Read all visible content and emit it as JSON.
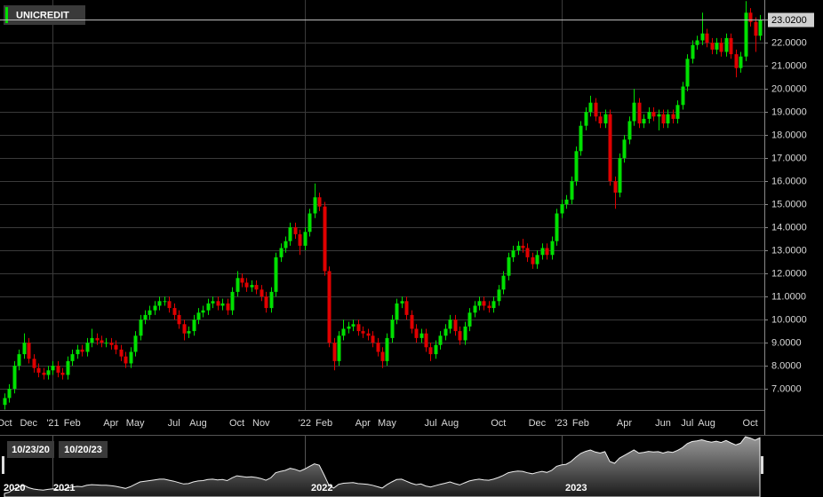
{
  "chart_data": {
    "type": "candlestick",
    "categories": [
      "Oct",
      null,
      null,
      null,
      null,
      "Dec",
      null,
      null,
      null,
      null,
      "'21",
      null,
      null,
      null,
      "Feb",
      null,
      null,
      null,
      null,
      null,
      null,
      null,
      "Apr",
      null,
      null,
      null,
      null,
      "May",
      null,
      null,
      null,
      null,
      null,
      null,
      null,
      "Jul",
      null,
      null,
      null,
      null,
      "Aug",
      null,
      null,
      null,
      null,
      null,
      null,
      null,
      "Oct",
      null,
      null,
      null,
      null,
      "Nov",
      null,
      null,
      null,
      null,
      null,
      null,
      null,
      null,
      "'22",
      null,
      null,
      null,
      "Feb",
      null,
      null,
      null,
      null,
      null,
      null,
      null,
      "Apr",
      null,
      null,
      null,
      null,
      "May",
      null,
      null,
      null,
      null,
      null,
      null,
      null,
      null,
      "Jul",
      null,
      null,
      null,
      "Aug",
      null,
      null,
      null,
      null,
      null,
      null,
      null,
      null,
      null,
      "Oct",
      null,
      null,
      null,
      null,
      null,
      null,
      null,
      "Dec",
      null,
      null,
      null,
      null,
      "'23",
      null,
      null,
      null,
      "Feb",
      null,
      null,
      null,
      null,
      null,
      null,
      null,
      null,
      "Apr",
      null,
      null,
      null,
      null,
      null,
      null,
      null,
      "Jun",
      null,
      null,
      null,
      null,
      "Jul",
      null,
      null,
      null,
      "Aug",
      null,
      null,
      null,
      null,
      null,
      null,
      null,
      null,
      "Oct",
      null,
      null
    ],
    "series": [
      {
        "name": "UNICREDIT",
        "open": [
          6.3,
          6.6,
          7.0,
          8.0,
          8.5,
          9.0,
          8.3,
          7.9,
          7.7,
          7.6,
          7.8,
          8.0,
          7.7,
          7.6,
          8.2,
          8.5,
          8.7,
          8.6,
          9.0,
          9.2,
          9.1,
          9.0,
          9.0,
          8.9,
          8.7,
          8.4,
          8.1,
          8.6,
          9.3,
          10.0,
          10.2,
          10.4,
          10.6,
          10.8,
          10.8,
          10.5,
          10.2,
          9.8,
          9.4,
          9.5,
          10.0,
          10.3,
          10.4,
          10.7,
          10.8,
          10.6,
          10.7,
          10.4,
          11.2,
          11.8,
          11.6,
          11.4,
          11.5,
          11.3,
          11.0,
          10.5,
          11.2,
          12.7,
          13.1,
          13.4,
          14.0,
          13.7,
          13.2,
          13.8,
          14.6,
          15.3,
          14.9,
          12.1,
          9.0,
          8.2,
          9.3,
          9.6,
          9.7,
          9.8,
          9.5,
          9.4,
          9.3,
          9.0,
          8.6,
          8.2,
          9.2,
          10.0,
          10.7,
          10.8,
          10.2,
          9.6,
          9.2,
          9.4,
          8.8,
          8.5,
          8.9,
          9.3,
          9.6,
          10.0,
          9.5,
          9.1,
          9.7,
          10.3,
          10.6,
          10.8,
          10.6,
          10.5,
          10.8,
          11.3,
          11.9,
          12.7,
          13.0,
          13.2,
          13.1,
          12.7,
          12.4,
          12.8,
          13.1,
          12.8,
          13.4,
          14.6,
          15.0,
          15.2,
          16.0,
          17.3,
          18.4,
          19.0,
          19.4,
          18.8,
          18.5,
          18.9,
          16.0,
          15.5,
          17.0,
          17.8,
          18.6,
          19.4,
          18.5,
          18.7,
          19.0,
          18.8,
          18.9,
          18.5,
          18.9,
          18.7,
          19.3,
          20.1,
          21.3,
          21.9,
          22.1,
          22.4,
          22.0,
          21.7,
          22.0,
          21.6,
          22.2,
          21.5,
          20.9,
          21.4,
          23.3,
          22.9,
          22.3
        ],
        "high": [
          6.8,
          7.2,
          8.2,
          8.7,
          9.4,
          9.2,
          8.5,
          8.1,
          7.9,
          8.0,
          8.2,
          8.2,
          7.9,
          8.4,
          8.7,
          8.9,
          8.9,
          9.2,
          9.6,
          9.4,
          9.3,
          9.2,
          9.2,
          9.1,
          8.9,
          8.6,
          8.8,
          9.5,
          10.2,
          10.4,
          10.6,
          10.8,
          11.0,
          11.0,
          11.0,
          10.7,
          10.4,
          10.0,
          9.7,
          10.2,
          10.5,
          10.6,
          10.9,
          11.0,
          11.0,
          10.9,
          10.9,
          11.4,
          12.1,
          12.0,
          11.8,
          11.7,
          11.7,
          11.5,
          11.2,
          11.4,
          12.9,
          13.3,
          13.6,
          14.2,
          14.2,
          13.9,
          14.0,
          14.8,
          15.9,
          15.5,
          15.1,
          12.3,
          9.2,
          9.5,
          10.0,
          9.9,
          10.0,
          10.0,
          9.7,
          9.6,
          9.5,
          9.2,
          8.8,
          9.4,
          10.2,
          10.9,
          11.0,
          11.0,
          10.4,
          9.8,
          9.6,
          9.6,
          9.0,
          9.1,
          9.5,
          9.8,
          10.2,
          10.2,
          9.7,
          9.9,
          10.5,
          10.8,
          11.0,
          11.0,
          10.8,
          11.0,
          11.5,
          12.1,
          12.9,
          13.2,
          13.4,
          13.5,
          13.3,
          12.9,
          13.0,
          13.3,
          13.3,
          13.6,
          14.8,
          15.2,
          15.4,
          16.2,
          17.5,
          18.6,
          19.2,
          19.7,
          19.6,
          19.0,
          19.1,
          19.1,
          16.2,
          17.2,
          18.0,
          18.8,
          20.0,
          19.6,
          18.9,
          19.2,
          19.2,
          19.1,
          19.1,
          19.1,
          19.1,
          19.5,
          20.3,
          21.5,
          22.1,
          22.3,
          23.3,
          22.6,
          22.2,
          22.2,
          22.2,
          22.4,
          22.4,
          21.7,
          21.6,
          23.8,
          23.5,
          23.1,
          23.2
        ],
        "low": [
          6.1,
          6.4,
          6.8,
          7.8,
          8.3,
          8.1,
          7.7,
          7.5,
          7.4,
          7.4,
          7.6,
          7.5,
          7.4,
          7.4,
          8.0,
          8.3,
          8.4,
          8.4,
          8.8,
          8.9,
          8.8,
          8.8,
          8.7,
          8.5,
          8.2,
          7.9,
          7.9,
          8.4,
          9.1,
          9.8,
          10.0,
          10.2,
          10.4,
          10.6,
          10.3,
          10.0,
          9.6,
          9.1,
          9.2,
          9.3,
          9.8,
          10.1,
          10.2,
          10.5,
          10.4,
          10.4,
          10.2,
          10.2,
          11.0,
          11.4,
          11.2,
          11.2,
          11.1,
          10.8,
          10.3,
          10.3,
          11.0,
          12.5,
          12.9,
          13.2,
          13.5,
          12.8,
          13.0,
          13.6,
          14.4,
          14.7,
          11.9,
          8.8,
          7.8,
          8.0,
          9.1,
          9.4,
          9.5,
          9.3,
          9.2,
          9.1,
          8.8,
          8.4,
          7.9,
          8.0,
          9.0,
          9.8,
          10.5,
          10.0,
          9.4,
          9.0,
          9.0,
          8.6,
          8.2,
          8.3,
          8.7,
          9.1,
          9.4,
          9.3,
          8.9,
          8.9,
          9.5,
          10.1,
          10.4,
          10.4,
          10.3,
          10.3,
          10.6,
          11.1,
          11.7,
          12.5,
          12.8,
          12.9,
          12.5,
          12.2,
          12.2,
          12.6,
          12.6,
          12.6,
          13.2,
          14.4,
          14.8,
          15.0,
          15.8,
          17.1,
          18.2,
          18.8,
          18.6,
          18.3,
          18.3,
          15.8,
          14.8,
          15.3,
          16.8,
          17.6,
          18.4,
          18.3,
          18.3,
          18.5,
          18.6,
          18.2,
          18.3,
          18.3,
          18.5,
          18.5,
          19.1,
          19.9,
          21.1,
          21.7,
          21.9,
          21.8,
          21.5,
          21.5,
          21.4,
          21.4,
          21.3,
          20.5,
          20.7,
          21.2,
          22.7,
          21.6,
          22.1
        ],
        "close": [
          6.6,
          7.0,
          8.0,
          8.5,
          9.0,
          8.3,
          7.9,
          7.7,
          7.6,
          7.8,
          8.0,
          7.7,
          7.6,
          8.2,
          8.5,
          8.7,
          8.6,
          9.0,
          9.2,
          9.1,
          9.0,
          9.0,
          8.9,
          8.7,
          8.4,
          8.1,
          8.6,
          9.3,
          10.0,
          10.2,
          10.4,
          10.6,
          10.8,
          10.8,
          10.5,
          10.2,
          9.8,
          9.4,
          9.5,
          10.0,
          10.3,
          10.4,
          10.7,
          10.8,
          10.6,
          10.7,
          10.4,
          11.2,
          11.8,
          11.6,
          11.4,
          11.5,
          11.3,
          11.0,
          10.5,
          11.2,
          12.7,
          13.1,
          13.4,
          14.0,
          13.7,
          13.2,
          13.8,
          14.6,
          15.3,
          14.9,
          12.1,
          9.0,
          8.2,
          9.3,
          9.6,
          9.7,
          9.8,
          9.5,
          9.4,
          9.3,
          9.0,
          8.6,
          8.2,
          9.2,
          10.0,
          10.7,
          10.8,
          10.2,
          9.6,
          9.2,
          9.4,
          8.8,
          8.5,
          8.9,
          9.3,
          9.6,
          10.0,
          9.5,
          9.1,
          9.7,
          10.3,
          10.6,
          10.8,
          10.6,
          10.5,
          10.8,
          11.3,
          11.9,
          12.7,
          13.0,
          13.2,
          13.1,
          12.7,
          12.4,
          12.8,
          13.1,
          12.8,
          13.4,
          14.6,
          15.0,
          15.2,
          16.0,
          17.3,
          18.4,
          19.0,
          19.4,
          18.8,
          18.5,
          18.9,
          16.0,
          15.5,
          17.0,
          17.8,
          18.6,
          19.4,
          18.5,
          18.7,
          19.0,
          18.8,
          18.9,
          18.5,
          18.9,
          18.7,
          19.3,
          20.1,
          21.3,
          21.9,
          22.1,
          22.4,
          22.0,
          21.7,
          22.0,
          21.6,
          22.2,
          21.5,
          20.9,
          21.4,
          23.3,
          22.9,
          22.3,
          23.0
        ]
      }
    ],
    "up_color": "#00e000",
    "down_color": "#e00000",
    "ylim": [
      6.08,
      23.85
    ],
    "yticks": [
      {
        "value": 7,
        "label": "7.0000"
      },
      {
        "value": 8,
        "label": "8.0000"
      },
      {
        "value": 9,
        "label": "9.0000"
      },
      {
        "value": 10,
        "label": "10.0000"
      },
      {
        "value": 11,
        "label": "11.0000"
      },
      {
        "value": 12,
        "label": "12.0000"
      },
      {
        "value": 13,
        "label": "13.0000"
      },
      {
        "value": 14,
        "label": "14.0000"
      },
      {
        "value": 15,
        "label": "15.0000"
      },
      {
        "value": 16,
        "label": "16.0000"
      },
      {
        "value": 17,
        "label": "17.0000"
      },
      {
        "value": 18,
        "label": "18.0000"
      },
      {
        "value": 19,
        "label": "19.0000"
      },
      {
        "value": 20,
        "label": "20.0000"
      },
      {
        "value": 21,
        "label": "21.0000"
      },
      {
        "value": 22,
        "label": "22.0000"
      }
    ],
    "grid": true,
    "last_price": {
      "value": 23.02,
      "label": "23.0200"
    },
    "navigator": {
      "range_start": "10/23/20",
      "range_end": "10/20/23",
      "years": [
        "2020",
        "2021",
        "2022",
        "2023"
      ]
    }
  }
}
